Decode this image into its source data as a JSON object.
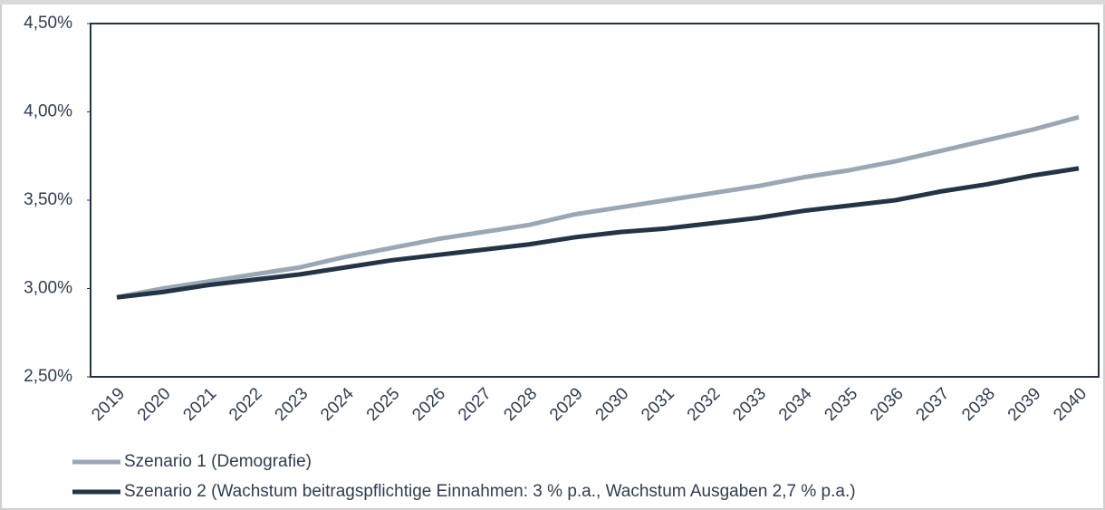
{
  "chart_data": {
    "type": "line",
    "categories": [
      "2019",
      "2020",
      "2021",
      "2022",
      "2023",
      "2024",
      "2025",
      "2026",
      "2027",
      "2028",
      "2029",
      "2030",
      "2031",
      "2032",
      "2033",
      "2034",
      "2035",
      "2036",
      "2037",
      "2038",
      "2039",
      "2040"
    ],
    "series": [
      {
        "name": "Szenario 1 (Demografie)",
        "color": "#9aa7b5",
        "values": [
          2.95,
          3.0,
          3.04,
          3.08,
          3.12,
          3.18,
          3.23,
          3.28,
          3.32,
          3.36,
          3.42,
          3.46,
          3.5,
          3.54,
          3.58,
          3.63,
          3.67,
          3.72,
          3.78,
          3.84,
          3.9,
          3.97
        ]
      },
      {
        "name": "Szenario 2 (Wachstum beitragspflichtige Einnahmen: 3 % p.a., Wachstum Ausgaben 2,7 % p.a.)",
        "color": "#243447",
        "values": [
          2.95,
          2.98,
          3.02,
          3.05,
          3.08,
          3.12,
          3.16,
          3.19,
          3.22,
          3.25,
          3.29,
          3.32,
          3.34,
          3.37,
          3.4,
          3.44,
          3.47,
          3.5,
          3.55,
          3.59,
          3.64,
          3.68
        ]
      }
    ],
    "ylim": [
      2.5,
      4.5
    ],
    "yticks": [
      {
        "value": 2.5,
        "label": "2,50%"
      },
      {
        "value": 3.0,
        "label": "3,00%"
      },
      {
        "value": 3.5,
        "label": "3,50%"
      },
      {
        "value": 4.0,
        "label": "4,00%"
      },
      {
        "value": 4.5,
        "label": "4,50%"
      }
    ],
    "grid": false,
    "legend": "bottom"
  }
}
